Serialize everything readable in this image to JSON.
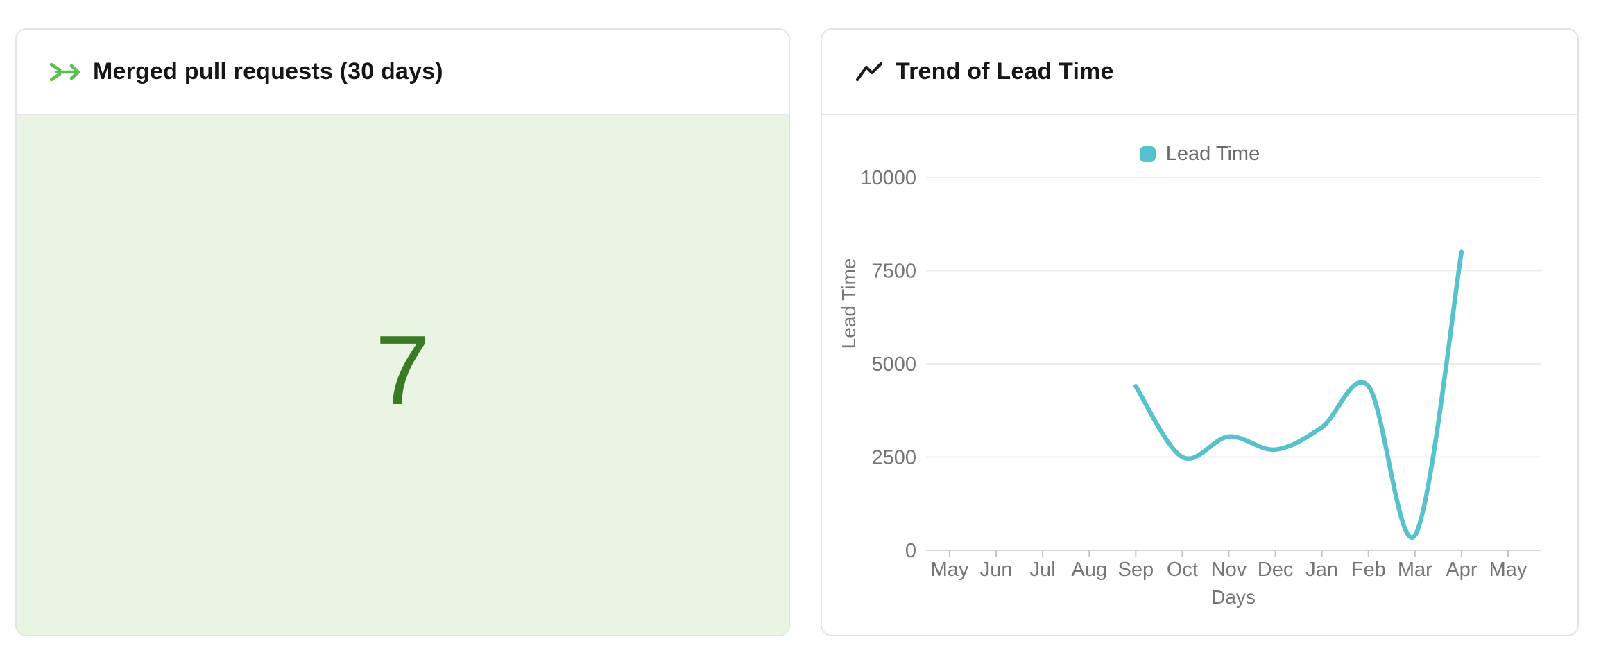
{
  "left_card": {
    "title": "Merged pull requests (30 days)",
    "value": "7",
    "icon": "merge-arrow-icon",
    "accent_color": "#57c04f",
    "value_color": "#3a7a26",
    "body_bg": "#e9f4e3"
  },
  "right_card": {
    "title": "Trend of Lead Time",
    "icon": "trend-line-icon"
  },
  "chart_data": {
    "type": "line",
    "title": "Trend of Lead Time",
    "xlabel": "Days",
    "ylabel": "Lead Time",
    "legend": [
      "Lead Time"
    ],
    "legend_position": "top-center",
    "categories": [
      "May",
      "Jun",
      "Jul",
      "Aug",
      "Sep",
      "Oct",
      "Nov",
      "Dec",
      "Jan",
      "Feb",
      "Mar",
      "Apr",
      "May"
    ],
    "series": [
      {
        "name": "Lead Time",
        "color": "#58c2cc",
        "values": [
          null,
          null,
          null,
          null,
          4400,
          2500,
          3050,
          2700,
          3300,
          4400,
          400,
          8000,
          null
        ]
      }
    ],
    "ylim": [
      0,
      10000
    ],
    "yticks": [
      0,
      2500,
      5000,
      7500,
      10000
    ],
    "grid": true,
    "smooth": true,
    "colors": {
      "grid_line": "#ececec",
      "axis_line": "#d7d7d7",
      "tick_mark": "#c4c4c4",
      "label_text": "#757575"
    }
  }
}
